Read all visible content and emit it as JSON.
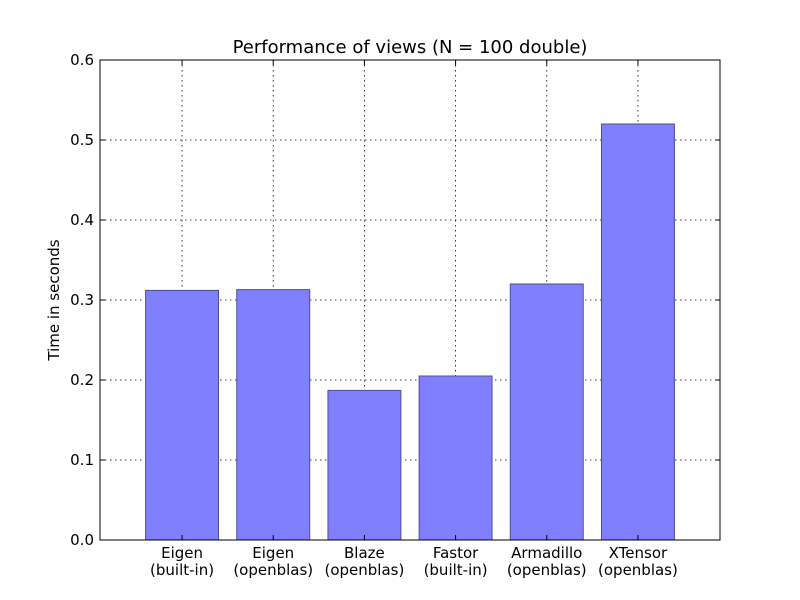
{
  "chart_data": {
    "type": "bar",
    "title": "Performance of views (N = 100 double)",
    "xlabel": "",
    "ylabel": "Time in seconds",
    "categories": [
      [
        "Eigen",
        "(built-in)"
      ],
      [
        "Eigen",
        "(openblas)"
      ],
      [
        "Blaze",
        "(openblas)"
      ],
      [
        "Fastor",
        "(built-in)"
      ],
      [
        "Armadillo",
        "(openblas)"
      ],
      [
        "XTensor",
        "(openblas)"
      ]
    ],
    "values": [
      0.312,
      0.313,
      0.187,
      0.205,
      0.32,
      0.52
    ],
    "ylim": [
      0,
      0.6
    ],
    "yticks": [
      "0.0",
      "0.1",
      "0.2",
      "0.3",
      "0.4",
      "0.5",
      "0.6"
    ],
    "grid": true,
    "bar_color": "#8080ff",
    "bar_edge_color": "#4d4d99"
  }
}
